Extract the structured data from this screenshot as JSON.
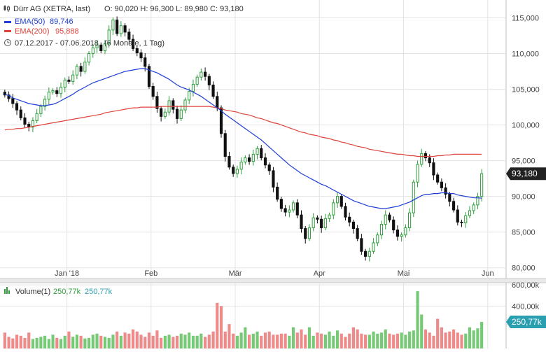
{
  "header": {
    "title": "Dürr AG (XETRA, last)",
    "ohlc": "O: 90,020  H: 96,300  L: 89,980  C: 93,180",
    "ema50_label": "EMA(50)",
    "ema50_value": "89,746",
    "ema200_label": "EMA(200)",
    "ema200_value": "95,888",
    "range": "07.12.2017 - 07.06.2018",
    "interval": "(6 Monate, 1 Tag)",
    "chart_icon": "candlestick-icon",
    "clock_icon": "clock-icon"
  },
  "volume_header": {
    "label": "Volume(1)",
    "value1": "250,77k",
    "value2": "250,77k",
    "icon": "bar-chart-icon"
  },
  "last_price_badge": "93,180",
  "last_volume_badge": "250,77k",
  "colors": {
    "up": "#2e9e3b",
    "down": "#111111",
    "ema50": "#1f3fd6",
    "ema200": "#e0433b",
    "vol_up": "#76c975",
    "vol_down": "#ef8a8a",
    "grid": "#e3e3e3"
  },
  "chart_data": [
    {
      "type": "candlestick",
      "title": "Dürr AG (XETRA, last)",
      "x_ticks": [
        "Jan '18",
        "Feb",
        "Mär",
        "Apr",
        "Mai",
        "Jun"
      ],
      "x_tick_positions": [
        16,
        37,
        58,
        79,
        100,
        121
      ],
      "y_ticks": [
        "115,000",
        "110,000",
        "105,000",
        "100,000",
        "95,000",
        "90,000",
        "85,000",
        "80,000"
      ],
      "y_tick_values": [
        115,
        110,
        105,
        100,
        95,
        90,
        85,
        80
      ],
      "ylim": [
        78.5,
        117.5
      ],
      "xlim": [
        0,
        128
      ],
      "close": [
        104.2,
        103.7,
        103.0,
        102.1,
        101.0,
        100.1,
        99.7,
        100.6,
        101.6,
        102.6,
        103.6,
        104.6,
        104.8,
        104.4,
        105.3,
        106.3,
        106.1,
        107.0,
        108.2,
        107.5,
        108.8,
        110.0,
        110.8,
        111.2,
        110.4,
        111.4,
        113.3,
        114.7,
        112.8,
        113.9,
        113.0,
        112.0,
        110.7,
        110.1,
        109.4,
        108.2,
        105.4,
        104.0,
        102.3,
        101.2,
        101.8,
        103.4,
        102.2,
        100.9,
        102.1,
        103.5,
        104.7,
        105.7,
        106.7,
        107.4,
        106.8,
        105.6,
        104.0,
        102.4,
        98.8,
        95.6,
        94.1,
        93.2,
        93.8,
        94.8,
        95.4,
        94.9,
        95.9,
        96.7,
        95.4,
        94.4,
        93.6,
        91.3,
        89.6,
        88.3,
        87.8,
        88.1,
        89.1,
        87.4,
        85.5,
        84.1,
        85.6,
        87.0,
        86.8,
        85.6,
        86.9,
        87.4,
        89.1,
        90.0,
        88.6,
        87.1,
        86.4,
        85.5,
        84.1,
        82.3,
        81.6,
        82.3,
        83.5,
        84.6,
        86.1,
        87.4,
        86.7,
        85.3,
        84.4,
        84.6,
        85.6,
        87.7,
        92.0,
        94.5,
        96.0,
        95.4,
        94.7,
        93.0,
        92.0,
        91.2,
        90.3,
        89.3,
        88.1,
        86.4,
        86.3,
        87.3,
        88.0,
        88.8,
        90.0,
        93.18
      ],
      "ema50": [
        104.3,
        104.1,
        103.8,
        103.6,
        103.4,
        103.2,
        103.0,
        102.9,
        102.8,
        102.7,
        102.7,
        102.8,
        102.9,
        103.1,
        103.4,
        103.7,
        104.0,
        104.3,
        104.7,
        105.0,
        105.3,
        105.6,
        105.9,
        106.1,
        106.3,
        106.5,
        106.7,
        106.9,
        107.1,
        107.3,
        107.5,
        107.6,
        107.7,
        107.8,
        107.9,
        107.9,
        107.7,
        107.5,
        107.3,
        107.0,
        106.7,
        106.4,
        106.0,
        105.6,
        105.3,
        105.1,
        104.9,
        104.6,
        104.3,
        104.0,
        103.6,
        103.2,
        102.8,
        102.4,
        102.0,
        101.5,
        101.1,
        100.7,
        100.3,
        99.9,
        99.5,
        99.1,
        98.7,
        98.3,
        97.9,
        97.4,
        96.9,
        96.4,
        95.9,
        95.4,
        94.9,
        94.4,
        94.0,
        93.6,
        93.2,
        92.9,
        92.6,
        92.3,
        92.0,
        91.7,
        91.5,
        91.2,
        90.9,
        90.6,
        90.3,
        90.0,
        89.7,
        89.4,
        89.2,
        89.0,
        88.8,
        88.6,
        88.5,
        88.4,
        88.3,
        88.3,
        88.4,
        88.5,
        88.6,
        88.8,
        89.0,
        89.2,
        89.5,
        89.8,
        90.1,
        90.3,
        90.3,
        90.4,
        90.4,
        90.5,
        90.5,
        90.4,
        90.4,
        90.2,
        90.1,
        90.0,
        89.9,
        89.8,
        89.8,
        89.75
      ],
      "ema200": [
        99.3,
        99.4,
        99.4,
        99.5,
        99.5,
        99.6,
        99.7,
        99.8,
        99.9,
        100.0,
        100.1,
        100.2,
        100.3,
        100.4,
        100.5,
        100.6,
        100.7,
        100.8,
        100.9,
        101.0,
        101.1,
        101.2,
        101.3,
        101.4,
        101.5,
        101.7,
        101.8,
        101.9,
        102.0,
        102.1,
        102.2,
        102.3,
        102.4,
        102.4,
        102.5,
        102.5,
        102.5,
        102.5,
        102.5,
        102.6,
        102.6,
        102.6,
        102.6,
        102.6,
        102.6,
        102.6,
        102.6,
        102.6,
        102.6,
        102.6,
        102.6,
        102.6,
        102.5,
        102.4,
        102.3,
        102.1,
        102.0,
        101.9,
        101.8,
        101.6,
        101.5,
        101.4,
        101.2,
        101.0,
        100.9,
        100.7,
        100.5,
        100.3,
        100.2,
        100.0,
        99.8,
        99.6,
        99.4,
        99.2,
        99.0,
        98.9,
        98.7,
        98.6,
        98.5,
        98.3,
        98.2,
        98.1,
        97.9,
        97.8,
        97.6,
        97.5,
        97.3,
        97.2,
        97.0,
        96.9,
        96.8,
        96.6,
        96.5,
        96.4,
        96.3,
        96.2,
        96.1,
        96.0,
        95.9,
        95.9,
        95.8,
        95.7,
        95.7,
        95.6,
        95.6,
        95.6,
        95.6,
        95.6,
        95.7,
        95.7,
        95.8,
        95.8,
        95.9,
        95.9,
        95.9,
        95.9,
        95.9,
        95.9,
        95.9,
        95.89
      ]
    },
    {
      "type": "bar",
      "title": "Volume(1)",
      "y_ticks": [
        "600,00k",
        "400,00k"
      ],
      "y_tick_values": [
        600,
        400
      ],
      "ylim": [
        0,
        620
      ],
      "values": [
        150,
        110,
        95,
        130,
        120,
        100,
        150,
        90,
        100,
        110,
        120,
        90,
        130,
        100,
        90,
        120,
        160,
        110,
        130,
        120,
        95,
        100,
        130,
        140,
        120,
        110,
        100,
        130,
        160,
        120,
        150,
        140,
        180,
        160,
        130,
        110,
        150,
        120,
        170,
        100,
        120,
        130,
        110,
        120,
        140,
        130,
        150,
        120,
        120,
        140,
        110,
        130,
        160,
        430,
        400,
        160,
        230,
        140,
        120,
        150,
        200,
        130,
        140,
        160,
        120,
        150,
        160,
        130,
        130,
        140,
        140,
        120,
        200,
        150,
        180,
        130,
        200,
        120,
        150,
        140,
        130,
        160,
        120,
        170,
        140,
        110,
        140,
        200,
        180,
        140,
        130,
        130,
        160,
        140,
        150,
        180,
        140,
        130,
        140,
        150,
        130,
        160,
        170,
        540,
        320,
        180,
        150,
        120,
        280,
        200,
        150,
        160,
        180,
        150,
        130,
        140,
        200,
        170,
        190,
        251
      ]
    }
  ]
}
